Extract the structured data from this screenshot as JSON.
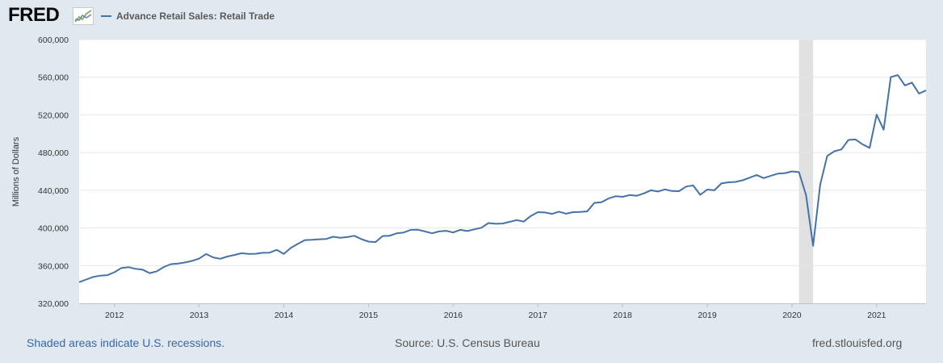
{
  "brand": {
    "logo_text": "FRED"
  },
  "legend": {
    "series_label": "Advance Retail Sales: Retail Trade"
  },
  "footer": {
    "recession_note": "Shaded areas indicate U.S. recessions.",
    "source": "Source: U.S. Census Bureau",
    "site": "fred.stlouisfed.org"
  },
  "colors": {
    "series": "#4572a7",
    "recession": "#e1e1e1",
    "grid": "#e6e6e6",
    "background": "#e1e9f0"
  },
  "chart_data": {
    "type": "line",
    "title": "",
    "ylabel": "Millions of Dollars",
    "xlabel": "",
    "ylim": [
      320000,
      600000
    ],
    "yticks": [
      "320,000",
      "360,000",
      "400,000",
      "440,000",
      "480,000",
      "520,000",
      "560,000",
      "600,000"
    ],
    "xticks": [
      "2012",
      "2013",
      "2014",
      "2015",
      "2016",
      "2017",
      "2018",
      "2019",
      "2020",
      "2021"
    ],
    "x_start": "2011-08",
    "x_end": "2021-08",
    "frequency": "monthly",
    "grid": true,
    "recessions": [
      {
        "start": "2020-02",
        "end": "2020-04"
      }
    ],
    "series": [
      {
        "name": "Advance Retail Sales: Retail Trade",
        "values": [
          342400,
          345300,
          348000,
          349400,
          349900,
          353000,
          357500,
          358400,
          356600,
          355700,
          352000,
          354000,
          358500,
          361500,
          362200,
          363300,
          365000,
          367400,
          372300,
          368700,
          367300,
          369700,
          371300,
          373200,
          372400,
          372600,
          373600,
          373800,
          376800,
          372400,
          378800,
          383200,
          387100,
          387400,
          388000,
          388300,
          390600,
          389500,
          390300,
          391700,
          388100,
          385500,
          385000,
          391400,
          391700,
          394300,
          395200,
          398000,
          398100,
          396300,
          394300,
          396300,
          397000,
          395200,
          398000,
          396700,
          398500,
          400200,
          405200,
          404400,
          404700,
          406500,
          408300,
          406700,
          412700,
          416800,
          416400,
          415000,
          417300,
          415100,
          416800,
          417000,
          417600,
          426600,
          427300,
          431200,
          433600,
          433000,
          434900,
          434100,
          436600,
          440000,
          438700,
          440900,
          439200,
          439000,
          443900,
          445200,
          435200,
          440700,
          440000,
          447200,
          448400,
          448900,
          450600,
          453300,
          456200,
          452900,
          455400,
          457600,
          458200,
          460000,
          459200,
          434700,
          381000,
          446000,
          476400,
          481400,
          483300,
          493400,
          493900,
          488800,
          485000,
          520300,
          504300,
          560100,
          562200,
          551300,
          554300,
          542600,
          546000
        ]
      }
    ]
  }
}
